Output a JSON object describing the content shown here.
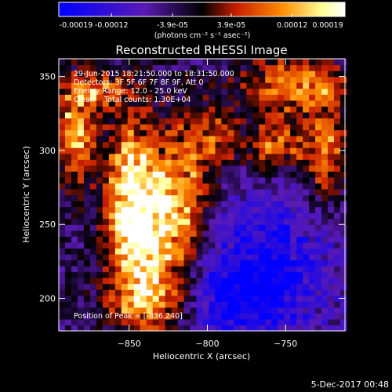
{
  "chart_data": {
    "type": "heatmap",
    "title": "Reconstructed RHESSI Image",
    "xlabel": "Heliocentric X (arcsec)",
    "ylabel": "Heliocentric Y (arcsec)",
    "xlim": [
      -895,
      -712
    ],
    "ylim": [
      178,
      362
    ],
    "xticks": [
      -850,
      -800,
      -750
    ],
    "yticks": [
      200,
      250,
      300,
      350
    ],
    "colorbar": {
      "min": -0.00019,
      "max": 0.00019,
      "tick_values": [
        -0.00019,
        -0.00012,
        -3.9e-05,
        3.9e-05,
        0.00012,
        0.00019
      ],
      "tick_labels": [
        "-0.00019",
        "-0.00012",
        "-3.9e-05",
        "3.9e-05",
        "0.00012",
        "0.00019"
      ],
      "units": "(photons cm⁻² s⁻¹ asec⁻²)",
      "colors": [
        "#0000ff",
        "#5a1ab4",
        "#000000",
        "#c81e00",
        "#ff8c00",
        "#ffff96",
        "#ffffff"
      ]
    },
    "annotations": {
      "time_range": "29-Jun-2015 18:21:50.000 to 18:31:50.000",
      "detectors": "Detectors: 3F 5F 6F 7F 8F 9F, Att 0",
      "energy_range": "Energy Range: 12.0 - 25.0 keV",
      "method_counts": "Clean    Total counts: 1.30E+04",
      "peak": "Position of Peak = [-836,240]"
    },
    "timestamp": "5-Dec-2017 00:48",
    "bright_regions": [
      {
        "x": -840,
        "y": 240,
        "sx": 14,
        "sy": 45,
        "amp": 0.0002
      },
      {
        "x": -850,
        "y": 270,
        "sx": 10,
        "sy": 30,
        "amp": 0.00015
      },
      {
        "x": -885,
        "y": 310,
        "sx": 9,
        "sy": 22,
        "amp": 0.00016
      },
      {
        "x": -870,
        "y": 340,
        "sx": 14,
        "sy": 10,
        "amp": 0.00012
      },
      {
        "x": -815,
        "y": 265,
        "sx": 12,
        "sy": 35,
        "amp": 0.00013
      },
      {
        "x": -795,
        "y": 310,
        "sx": 12,
        "sy": 15,
        "amp": 0.0001
      },
      {
        "x": -745,
        "y": 345,
        "sx": 22,
        "sy": 12,
        "amp": 0.00015
      },
      {
        "x": -755,
        "y": 305,
        "sx": 12,
        "sy": 12,
        "amp": 0.00014
      },
      {
        "x": -725,
        "y": 300,
        "sx": 9,
        "sy": 25,
        "amp": 0.00013
      },
      {
        "x": -830,
        "y": 200,
        "sx": 25,
        "sy": 10,
        "amp": 7e-05
      }
    ],
    "dim_regions": [
      {
        "x": -760,
        "y": 220,
        "sx": 30,
        "sy": 35,
        "amp": -0.00013
      },
      {
        "x": -790,
        "y": 200,
        "sx": 20,
        "sy": 15,
        "amp": -0.0001
      }
    ]
  }
}
